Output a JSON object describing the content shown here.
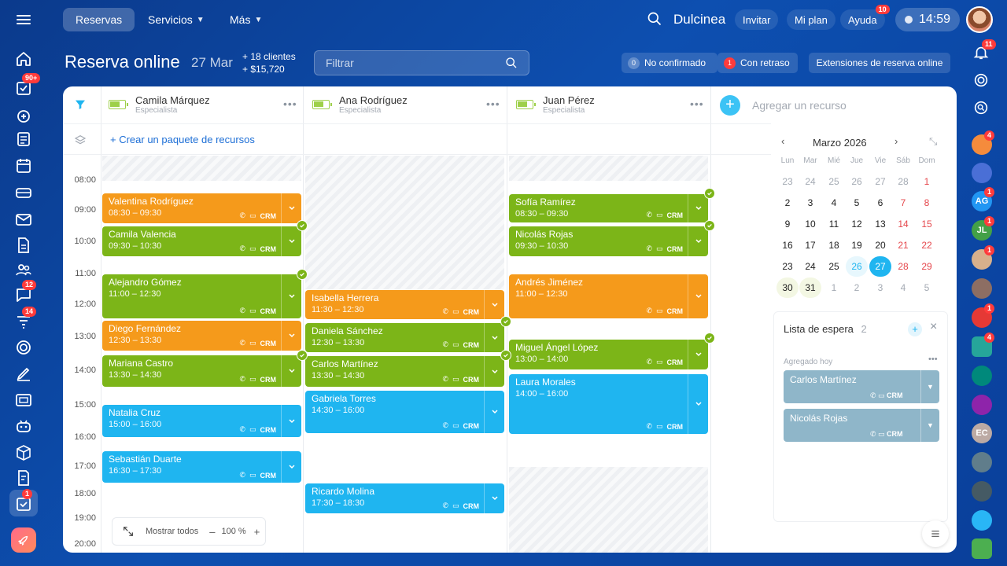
{
  "nav": {
    "tabs": [
      {
        "label": "Reservas",
        "active": true
      },
      {
        "label": "Servicios",
        "dropdown": true
      },
      {
        "label": "Más",
        "dropdown": true
      }
    ],
    "workspace": "Dulcinea",
    "invite": "Invitar",
    "plan": "Mi plan",
    "help": "Ayuda",
    "help_badge": "10",
    "clock": "14:59"
  },
  "left_sidebar": {
    "badges": {
      "tasks": "90+",
      "chat": "12",
      "filter": "14",
      "booking": "1"
    }
  },
  "right_sidebar": {
    "badges": {
      "bell": "11",
      "tasks": "4",
      "ag": "1",
      "jl": "1",
      "person1": "1",
      "team": "1",
      "map": "4"
    },
    "avatars": {
      "ag": "AG",
      "jl": "JL",
      "ec": "EC"
    }
  },
  "header": {
    "title": "Reserva online",
    "date": "27 Mar",
    "clients": "+ 18 clientes",
    "revenue": "+ $15,720",
    "filter_placeholder": "Filtrar",
    "unconfirmed_count": "0",
    "unconfirmed_label": "No confirmado",
    "delayed_count": "1",
    "delayed_label": "Con retraso",
    "extensions_label": "Extensiones de reserva online"
  },
  "resources": [
    {
      "name": "Camila Márquez",
      "role": "Especialista"
    },
    {
      "name": "Ana Rodríguez",
      "role": "Especialista"
    },
    {
      "name": "Juan Pérez",
      "role": "Especialista"
    }
  ],
  "add_resource": "Agregar un recurso",
  "create_package": "+ Crear un paquete de recursos",
  "times": [
    "08:00",
    "09:00",
    "10:00",
    "11:00",
    "12:00",
    "13:00",
    "14:00",
    "15:00",
    "16:00",
    "17:00",
    "18:00",
    "19:00",
    "20:00"
  ],
  "appointments": {
    "c1": [
      {
        "name": "Valentina Rodríguez",
        "time": "08:30 – 09:30",
        "color": "#f59a1b"
      },
      {
        "name": "Camila Valencia",
        "time": "09:30 – 10:30",
        "color": "#7cb518"
      },
      {
        "name": "Alejandro Gómez",
        "time": "11:00 – 12:30",
        "color": "#7cb518"
      },
      {
        "name": "Diego Fernández",
        "time": "12:30 – 13:30",
        "color": "#f59a1b"
      },
      {
        "name": "Mariana Castro",
        "time": "13:30 – 14:30",
        "color": "#7cb518"
      },
      {
        "name": "Natalia Cruz",
        "time": "15:00 – 16:00",
        "color": "#1fb5f0"
      },
      {
        "name": "Sebastián Duarte",
        "time": "16:30 – 17:30",
        "color": "#1fb5f0"
      }
    ],
    "c2": [
      {
        "name": "Isabella Herrera",
        "time": "11:30 – 12:30",
        "color": "#f59a1b"
      },
      {
        "name": "Daniela Sánchez",
        "time": "12:30 – 13:30",
        "color": "#7cb518"
      },
      {
        "name": "Carlos Martínez",
        "time": "13:30 – 14:30",
        "color": "#7cb518"
      },
      {
        "name": "Gabriela Torres",
        "time": "14:30 – 16:00",
        "color": "#1fb5f0"
      },
      {
        "name": "Ricardo Molina",
        "time": "17:30 – 18:30",
        "color": "#1fb5f0"
      }
    ],
    "c3": [
      {
        "name": "Sofía Ramírez",
        "time": "08:30 – 09:30",
        "color": "#7cb518"
      },
      {
        "name": "Nicolás Rojas",
        "time": "09:30 – 10:30",
        "color": "#7cb518"
      },
      {
        "name": "Andrés Jiménez",
        "time": "11:00 – 12:30",
        "color": "#f59a1b"
      },
      {
        "name": "Miguel Ángel López",
        "time": "13:00 – 14:00",
        "color": "#7cb518"
      },
      {
        "name": "Laura Morales",
        "time": "14:00 – 16:00",
        "color": "#1fb5f0"
      }
    ]
  },
  "crm_label": "CRM",
  "calendar": {
    "title": "Marzo 2026",
    "weekdays": [
      "Lun",
      "Mar",
      "Mié",
      "Jue",
      "Vie",
      "Sáb",
      "Dom"
    ],
    "weeks": [
      [
        "23",
        "24",
        "25",
        "26",
        "27",
        "28",
        "1"
      ],
      [
        "2",
        "3",
        "4",
        "5",
        "6",
        "7",
        "8"
      ],
      [
        "9",
        "10",
        "11",
        "12",
        "13",
        "14",
        "15"
      ],
      [
        "16",
        "17",
        "18",
        "19",
        "20",
        "21",
        "22"
      ],
      [
        "23",
        "24",
        "25",
        "26",
        "27",
        "28",
        "29"
      ],
      [
        "30",
        "31",
        "1",
        "2",
        "3",
        "4",
        "5"
      ]
    ],
    "selected": "27"
  },
  "waitlist": {
    "title": "Lista de espera",
    "count": "2",
    "group": "Agregado hoy",
    "items": [
      {
        "name": "Carlos Martínez"
      },
      {
        "name": "Nicolás Rojas"
      }
    ]
  },
  "footer": {
    "show_all": "Mostrar todos",
    "zoom": "100 %",
    "minus": "–",
    "plus": "+"
  }
}
